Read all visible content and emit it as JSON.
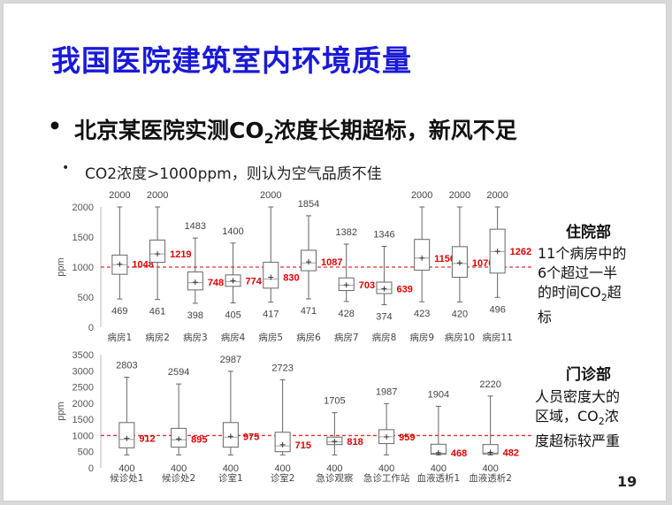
{
  "slide": {
    "title": "我国医院建筑室内环境质量",
    "bullet1": {
      "dot": "•",
      "text_before": "北京某医院实测CO",
      "sub": "2",
      "text_after": "浓度长期超标，新风不足"
    },
    "bullet2": {
      "dot": "•",
      "text": "CO2浓度>1000ppm，则认为空气品质不佳"
    },
    "page_number": "19"
  },
  "inpatient_note": {
    "heading": "住院部",
    "line1": "11个病房中的",
    "line2": "6个超过一半",
    "line3_before": "的时间CO",
    "line3_sub": "2",
    "line3_after": "超",
    "line4": "标"
  },
  "outpatient_note": {
    "heading": "门诊部",
    "line1": "人员密度大的",
    "line2_before": "区域，CO",
    "line2_sub": "2",
    "line2_after": "浓",
    "line3": "度超标较严重"
  },
  "chart_data": [
    {
      "type": "boxplot",
      "ylabel": "ppm",
      "ylim": [
        0,
        2000
      ],
      "yticks": [
        0,
        500,
        1000,
        1500,
        2000
      ],
      "threshold": 1000,
      "threshold_color": "#e03030",
      "categories": [
        "病房1",
        "病房2",
        "病房3",
        "病房4",
        "病房5",
        "病房6",
        "病房7",
        "病房8",
        "病房9",
        "病房10",
        "病房11"
      ],
      "max": [
        2000,
        2000,
        1483,
        1400,
        2000,
        1854,
        1382,
        1346,
        2000,
        2000,
        2000
      ],
      "min": [
        469,
        461,
        398,
        405,
        417,
        471,
        428,
        374,
        423,
        420,
        496
      ],
      "mean": [
        1048,
        1219,
        748,
        774,
        830,
        1087,
        703,
        639,
        1150,
        1070,
        1262
      ],
      "q1": [
        880,
        1080,
        620,
        680,
        650,
        940,
        610,
        560,
        950,
        830,
        900
      ],
      "q3": [
        1200,
        1450,
        920,
        870,
        1080,
        1280,
        820,
        750,
        1460,
        1340,
        1630
      ],
      "median": [
        1040,
        1220,
        740,
        760,
        800,
        1070,
        700,
        630,
        1150,
        1060,
        1260
      ],
      "grid": false,
      "legend": "none"
    },
    {
      "type": "boxplot",
      "ylabel": "ppm",
      "ylim": [
        0,
        3500
      ],
      "yticks": [
        0,
        500,
        1000,
        1500,
        2000,
        2500,
        3000,
        3500
      ],
      "threshold": 1000,
      "threshold_color": "#e03030",
      "categories": [
        "候诊处1",
        "候诊处2",
        "诊室1",
        "诊室2",
        "急诊观察",
        "急诊工作站",
        "血液透析1",
        "血液透析2"
      ],
      "max": [
        2803,
        2594,
        2987,
        2723,
        1705,
        1987,
        1904,
        2220
      ],
      "min": [
        400,
        400,
        400,
        400,
        400,
        400,
        400,
        400
      ],
      "min_label": [
        "400",
        "400",
        "400",
        "400",
        "400",
        "400",
        "400",
        "400"
      ],
      "mean": [
        912,
        895,
        975,
        715,
        818,
        959,
        468,
        482
      ],
      "q1": [
        620,
        640,
        640,
        500,
        720,
        750,
        420,
        430
      ],
      "q3": [
        1400,
        1220,
        1400,
        1100,
        950,
        1180,
        730,
        720
      ],
      "median": [
        880,
        870,
        950,
        680,
        800,
        960,
        450,
        460
      ],
      "grid": false,
      "legend": "none"
    }
  ]
}
